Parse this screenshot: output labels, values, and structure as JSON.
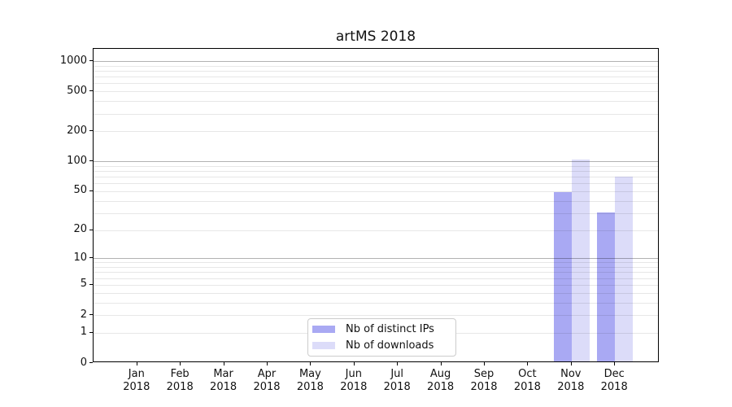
{
  "chart_data": {
    "type": "bar",
    "title": "artMS 2018",
    "categories": [
      "Jan",
      "Feb",
      "Mar",
      "Apr",
      "May",
      "Jun",
      "Jul",
      "Aug",
      "Sep",
      "Oct",
      "Nov",
      "Dec"
    ],
    "x_tick_year": "2018",
    "series": [
      {
        "name": "Nb of distinct IPs",
        "color": "#a9a9f3",
        "values": [
          0,
          0,
          0,
          0,
          0,
          0,
          0,
          0,
          0,
          0,
          47,
          29
        ]
      },
      {
        "name": "Nb of downloads",
        "color": "#dcdcf9",
        "values": [
          0,
          0,
          0,
          0,
          0,
          0,
          0,
          0,
          0,
          0,
          100,
          67
        ]
      }
    ],
    "yscale": "log1p",
    "ylim": [
      0,
      1000
    ],
    "y_ticks": [
      0,
      1,
      2,
      5,
      10,
      20,
      50,
      100,
      200,
      500,
      1000
    ],
    "grid": {
      "major": [
        10,
        100,
        1000
      ],
      "minor": [
        1,
        2,
        3,
        4,
        5,
        6,
        7,
        8,
        9,
        20,
        30,
        40,
        50,
        60,
        70,
        80,
        90,
        200,
        300,
        400,
        500,
        600,
        700,
        800,
        900
      ]
    },
    "grid_on": true,
    "legend_position": "bottom-center"
  }
}
